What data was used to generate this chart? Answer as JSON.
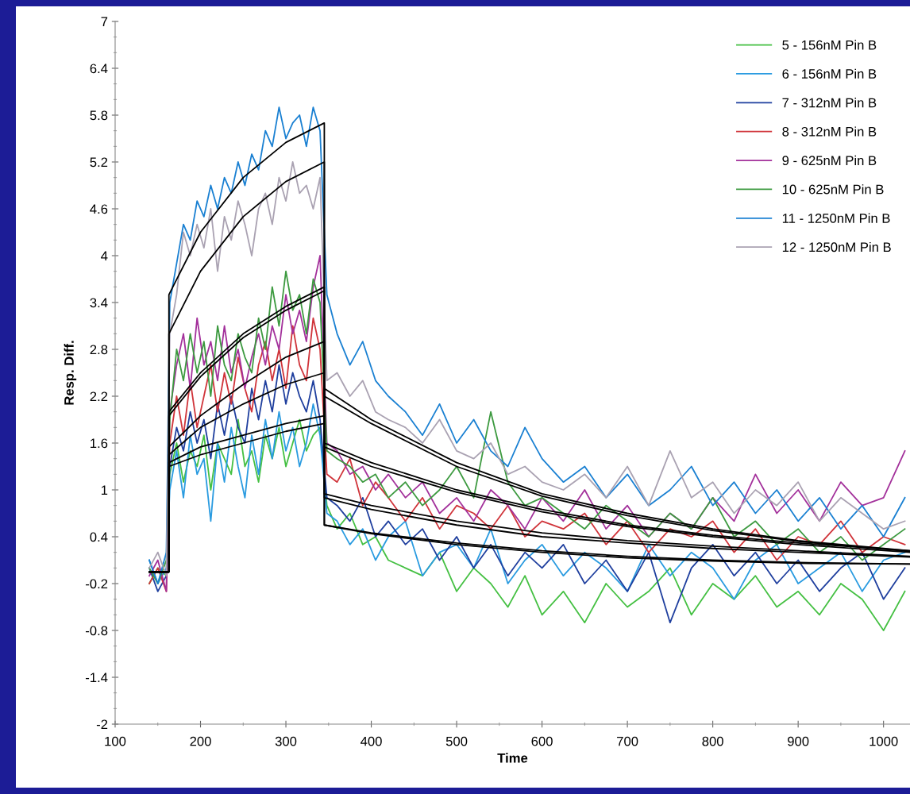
{
  "chart_data": {
    "type": "line",
    "xlabel": "Time",
    "ylabel": "Resp. Diff.",
    "xlim": [
      100,
      1031
    ],
    "ylim": [
      -2,
      7
    ],
    "xticks": [
      100,
      200,
      300,
      400,
      500,
      600,
      700,
      800,
      900,
      1000
    ],
    "yticks": [
      -2,
      -1.4,
      -0.8,
      -0.2,
      0.4,
      1,
      1.6,
      2.2,
      2.8,
      3.4,
      4,
      4.6,
      5.2,
      5.8,
      6.4,
      7
    ],
    "grid": false,
    "legend": "top right",
    "marker": "none",
    "line_style": "solid",
    "x": [
      140,
      150,
      160,
      164,
      172,
      180,
      188,
      196,
      204,
      212,
      220,
      228,
      236,
      244,
      252,
      260,
      268,
      276,
      284,
      292,
      300,
      308,
      316,
      324,
      332,
      340,
      348,
      360,
      375,
      390,
      405,
      420,
      440,
      460,
      480,
      500,
      520,
      540,
      560,
      580,
      600,
      625,
      650,
      675,
      700,
      725,
      750,
      775,
      800,
      825,
      850,
      875,
      900,
      925,
      950,
      975,
      1000,
      1025
    ],
    "series": [
      {
        "name": "5 - 156nM Pin B",
        "color": "#45c043",
        "values": [
          -0.2,
          0.0,
          -0.1,
          1.2,
          1.6,
          1.1,
          1.5,
          1.3,
          1.7,
          1.0,
          1.6,
          1.4,
          1.2,
          1.9,
          1.3,
          1.5,
          1.1,
          1.7,
          1.4,
          1.8,
          1.3,
          1.6,
          1.9,
          1.5,
          1.7,
          1.8,
          0.8,
          0.5,
          0.7,
          0.3,
          0.4,
          0.1,
          0.0,
          -0.1,
          0.2,
          -0.3,
          0.0,
          -0.2,
          -0.5,
          -0.1,
          -0.6,
          -0.3,
          -0.7,
          -0.2,
          -0.5,
          -0.3,
          0.0,
          -0.6,
          -0.2,
          -0.4,
          -0.1,
          -0.5,
          -0.3,
          -0.6,
          -0.2,
          -0.4,
          -0.8,
          -0.3
        ]
      },
      {
        "name": "6 - 156nM Pin B",
        "color": "#2a9be0",
        "values": [
          0.1,
          -0.2,
          0.0,
          1.0,
          1.5,
          0.9,
          1.7,
          1.2,
          1.4,
          0.6,
          1.6,
          1.1,
          1.8,
          1.3,
          0.9,
          1.7,
          1.2,
          1.9,
          1.4,
          2.0,
          1.5,
          1.8,
          1.3,
          1.6,
          2.1,
          1.7,
          0.7,
          0.6,
          0.3,
          0.5,
          0.1,
          0.4,
          0.6,
          -0.1,
          0.2,
          0.3,
          0.0,
          0.5,
          -0.2,
          0.1,
          0.3,
          -0.1,
          0.2,
          0.0,
          -0.3,
          0.3,
          -0.1,
          0.2,
          0.0,
          -0.4,
          0.1,
          0.3,
          -0.2,
          0.0,
          0.2,
          -0.3,
          0.1,
          0.2
        ]
      },
      {
        "name": "7 - 312nM Pin B",
        "color": "#1f3f9e",
        "values": [
          0.0,
          -0.3,
          -0.1,
          1.3,
          1.8,
          1.5,
          2.0,
          1.6,
          1.9,
          1.4,
          2.1,
          1.7,
          2.2,
          1.8,
          1.6,
          2.3,
          1.9,
          2.4,
          2.0,
          2.6,
          2.1,
          2.5,
          2.2,
          2.0,
          2.4,
          1.9,
          0.9,
          0.8,
          0.6,
          0.9,
          0.4,
          0.6,
          0.3,
          0.5,
          0.1,
          0.4,
          0.0,
          0.3,
          -0.1,
          0.2,
          0.0,
          0.3,
          -0.2,
          0.1,
          -0.3,
          0.2,
          -0.7,
          0.0,
          0.3,
          -0.1,
          0.2,
          -0.2,
          0.1,
          -0.3,
          0.0,
          0.2,
          -0.4,
          0.0
        ]
      },
      {
        "name": "8 - 312nM Pin B",
        "color": "#d0343a",
        "values": [
          -0.2,
          0.0,
          -0.3,
          1.6,
          2.2,
          1.7,
          2.4,
          1.8,
          2.2,
          2.6,
          2.0,
          2.5,
          2.1,
          2.7,
          2.3,
          2.0,
          2.6,
          2.9,
          2.4,
          2.8,
          2.3,
          3.1,
          2.6,
          2.4,
          3.2,
          2.8,
          1.2,
          1.1,
          1.4,
          0.8,
          1.1,
          0.9,
          0.6,
          0.9,
          0.5,
          0.8,
          0.7,
          0.5,
          0.8,
          0.4,
          0.6,
          0.5,
          0.7,
          0.3,
          0.6,
          0.2,
          0.5,
          0.4,
          0.6,
          0.2,
          0.5,
          0.1,
          0.4,
          0.3,
          0.6,
          0.2,
          0.4,
          0.3
        ]
      },
      {
        "name": "9 - 625nM Pin B",
        "color": "#a3319b",
        "values": [
          -0.1,
          0.1,
          -0.3,
          2.0,
          2.6,
          3.0,
          2.3,
          3.2,
          2.6,
          2.9,
          2.4,
          3.1,
          2.5,
          2.8,
          2.3,
          2.7,
          3.0,
          2.6,
          3.1,
          2.8,
          3.5,
          3.0,
          3.3,
          2.9,
          3.6,
          4.0,
          1.6,
          1.5,
          1.2,
          1.3,
          1.0,
          1.2,
          0.9,
          1.1,
          0.7,
          0.9,
          0.6,
          1.0,
          0.8,
          0.5,
          0.9,
          0.6,
          1.0,
          0.5,
          0.8,
          0.4,
          0.7,
          0.5,
          0.9,
          0.6,
          1.2,
          0.7,
          1.0,
          0.6,
          1.1,
          0.8,
          0.9,
          1.5
        ]
      },
      {
        "name": "10 - 625nM Pin B",
        "color": "#3d9a40",
        "values": [
          0.0,
          -0.2,
          0.1,
          1.9,
          2.8,
          2.4,
          3.0,
          2.5,
          2.9,
          2.2,
          3.1,
          2.6,
          2.4,
          3.0,
          2.7,
          2.5,
          3.2,
          2.8,
          3.6,
          3.1,
          3.8,
          3.3,
          3.5,
          3.0,
          3.7,
          3.4,
          1.5,
          1.4,
          1.3,
          1.1,
          1.2,
          0.9,
          1.1,
          0.8,
          1.0,
          1.3,
          0.9,
          2.0,
          1.1,
          0.8,
          0.9,
          0.7,
          0.5,
          0.8,
          0.6,
          0.4,
          0.7,
          0.5,
          0.9,
          0.4,
          0.6,
          0.3,
          0.5,
          0.2,
          0.4,
          0.1,
          0.3,
          0.5
        ]
      },
      {
        "name": "11 - 1250nM Pin B",
        "color": "#1a80d2",
        "values": [
          0.1,
          -0.2,
          0.2,
          3.4,
          3.9,
          4.4,
          4.2,
          4.7,
          4.5,
          4.9,
          4.6,
          5.0,
          4.8,
          5.2,
          4.9,
          5.3,
          5.1,
          5.6,
          5.4,
          5.9,
          5.5,
          5.7,
          5.8,
          5.4,
          5.9,
          5.6,
          3.5,
          3.0,
          2.6,
          2.9,
          2.4,
          2.2,
          2.0,
          1.7,
          2.1,
          1.6,
          1.9,
          1.5,
          1.3,
          1.8,
          1.4,
          1.1,
          1.3,
          0.9,
          1.2,
          0.8,
          1.0,
          1.3,
          0.8,
          1.1,
          0.7,
          1.0,
          0.6,
          0.9,
          0.5,
          0.8,
          0.4,
          0.9
        ]
      },
      {
        "name": "12 - 1250nM Pin B",
        "color": "#aaa2b2",
        "values": [
          0.0,
          0.2,
          -0.1,
          3.0,
          3.5,
          4.3,
          4.0,
          4.4,
          4.1,
          4.6,
          3.8,
          4.5,
          4.2,
          4.7,
          4.4,
          4.0,
          4.6,
          4.8,
          4.4,
          5.0,
          4.7,
          5.2,
          4.8,
          4.9,
          4.6,
          5.0,
          2.4,
          2.5,
          2.2,
          2.4,
          2.0,
          1.9,
          1.8,
          1.6,
          1.9,
          1.5,
          1.4,
          1.6,
          1.2,
          1.3,
          1.1,
          1.0,
          1.2,
          0.9,
          1.3,
          0.8,
          1.5,
          0.9,
          1.1,
          0.7,
          1.0,
          0.8,
          1.1,
          0.6,
          0.9,
          0.7,
          0.5,
          0.6
        ]
      },
      {
        "type": "line",
        "color": "#000000",
        "x": [
          140,
          163,
          163,
          200,
          250,
          300,
          345,
          345,
          400,
          500,
          600,
          700,
          800,
          900,
          1031
        ],
        "values": [
          -0.05,
          -0.05,
          3.5,
          4.3,
          5.0,
          5.45,
          5.7,
          2.3,
          1.9,
          1.35,
          0.95,
          0.7,
          0.5,
          0.35,
          0.22
        ]
      },
      {
        "type": "line",
        "color": "#000000",
        "x": [
          140,
          163,
          163,
          200,
          250,
          300,
          345,
          345,
          400,
          500,
          600,
          700,
          800,
          900,
          1031
        ],
        "values": [
          -0.05,
          -0.05,
          3.0,
          3.8,
          4.5,
          4.95,
          5.2,
          2.2,
          1.85,
          1.3,
          0.92,
          0.67,
          0.48,
          0.34,
          0.21
        ]
      },
      {
        "type": "line",
        "color": "#000000",
        "x": [
          140,
          163,
          163,
          200,
          250,
          300,
          345,
          345,
          400,
          500,
          600,
          700,
          800,
          900,
          1031
        ],
        "values": [
          -0.05,
          -0.05,
          2.0,
          2.5,
          3.0,
          3.35,
          3.6,
          1.6,
          1.35,
          1.0,
          0.75,
          0.55,
          0.42,
          0.32,
          0.22
        ]
      },
      {
        "type": "line",
        "color": "#000000",
        "x": [
          140,
          163,
          163,
          200,
          250,
          300,
          345,
          345,
          400,
          500,
          600,
          700,
          800,
          900,
          1031
        ],
        "values": [
          -0.05,
          -0.05,
          1.95,
          2.45,
          2.95,
          3.3,
          3.55,
          1.55,
          1.3,
          0.97,
          0.72,
          0.53,
          0.4,
          0.3,
          0.2
        ]
      },
      {
        "type": "line",
        "color": "#000000",
        "x": [
          140,
          163,
          163,
          200,
          250,
          300,
          345,
          345,
          400,
          500,
          600,
          700,
          800,
          900,
          1031
        ],
        "values": [
          -0.05,
          -0.05,
          1.55,
          1.95,
          2.35,
          2.7,
          2.9,
          0.95,
          0.8,
          0.6,
          0.45,
          0.35,
          0.28,
          0.22,
          0.15
        ]
      },
      {
        "type": "line",
        "color": "#000000",
        "x": [
          140,
          163,
          163,
          200,
          250,
          300,
          345,
          345,
          400,
          500,
          600,
          700,
          800,
          900,
          1031
        ],
        "values": [
          -0.05,
          -0.05,
          1.45,
          1.8,
          2.1,
          2.35,
          2.5,
          0.9,
          0.75,
          0.55,
          0.4,
          0.32,
          0.25,
          0.2,
          0.14
        ]
      },
      {
        "type": "line",
        "color": "#000000",
        "x": [
          140,
          163,
          163,
          200,
          250,
          300,
          345,
          345,
          400,
          500,
          600,
          700,
          800,
          900,
          1031
        ],
        "values": [
          -0.05,
          -0.05,
          1.35,
          1.55,
          1.7,
          1.85,
          1.95,
          0.55,
          0.45,
          0.32,
          0.22,
          0.15,
          0.1,
          0.07,
          0.05
        ]
      },
      {
        "type": "line",
        "color": "#000000",
        "x": [
          140,
          163,
          163,
          200,
          250,
          300,
          345,
          345,
          400,
          500,
          600,
          700,
          800,
          900,
          1031
        ],
        "values": [
          -0.05,
          -0.05,
          1.3,
          1.45,
          1.6,
          1.75,
          1.85,
          0.55,
          0.44,
          0.3,
          0.2,
          0.13,
          0.09,
          0.06,
          0.05
        ]
      }
    ]
  }
}
